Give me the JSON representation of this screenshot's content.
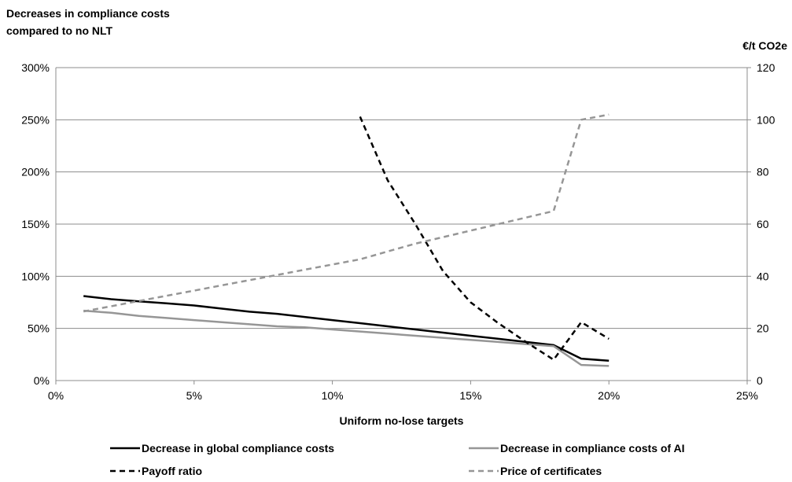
{
  "chart_data": {
    "type": "line",
    "ylabel_left_line1": "Decreases in compliance costs",
    "ylabel_left_line2": "compared to no NLT",
    "ylabel_right": "€/t CO2e",
    "xlabel": "Uniform no-lose targets",
    "xlim": [
      0,
      25
    ],
    "ylim_left": [
      0,
      300
    ],
    "ylim_right": [
      0,
      120
    ],
    "x_ticks": [
      "0%",
      "5%",
      "10%",
      "15%",
      "20%",
      "25%"
    ],
    "y_left_ticks": [
      "0%",
      "50%",
      "100%",
      "150%",
      "200%",
      "250%",
      "300%"
    ],
    "y_right_ticks": [
      "0",
      "20",
      "40",
      "60",
      "80",
      "100",
      "120"
    ],
    "grid": "horizontal",
    "legend_position": "bottom",
    "series": [
      {
        "name": "Decrease in global compliance costs",
        "axis": "left",
        "color": "#000000",
        "dash": "solid",
        "x": [
          1,
          2,
          3,
          4,
          5,
          6,
          7,
          8,
          9,
          10,
          11,
          12,
          13,
          14,
          15,
          16,
          17,
          18,
          19,
          20
        ],
        "y": [
          81,
          78,
          76,
          74,
          72,
          69,
          66,
          64,
          61,
          58,
          55,
          52,
          49,
          46,
          43,
          40,
          37,
          34,
          21,
          19
        ]
      },
      {
        "name": "Decrease in compliance costs of AI",
        "axis": "left",
        "color": "#969696",
        "dash": "solid",
        "x": [
          1,
          2,
          3,
          4,
          5,
          6,
          7,
          8,
          9,
          10,
          11,
          12,
          13,
          14,
          15,
          16,
          17,
          18,
          19,
          20
        ],
        "y": [
          67,
          65,
          62,
          60,
          58,
          56,
          54,
          52,
          51,
          49,
          47,
          45,
          43,
          41,
          39,
          37,
          35,
          33,
          15,
          14
        ]
      },
      {
        "name": "Payoff ratio",
        "axis": "left",
        "color": "#000000",
        "dash": "dashed",
        "x": [
          11,
          12,
          13,
          14,
          15,
          16,
          17,
          18,
          19,
          20
        ],
        "y": [
          253,
          192,
          150,
          105,
          75,
          55,
          37,
          20,
          56,
          40
        ]
      },
      {
        "name": "Price of certificates",
        "axis": "right",
        "color": "#969696",
        "dash": "dashed",
        "x": [
          1,
          2,
          3,
          4,
          5,
          6,
          7,
          8,
          9,
          10,
          11,
          12,
          13,
          14,
          15,
          16,
          17,
          18,
          19,
          20
        ],
        "y": [
          26.5,
          28.5,
          30.5,
          32.5,
          34.5,
          36.5,
          38.5,
          40.5,
          42.5,
          44.5,
          46.5,
          49.5,
          52.5,
          55,
          57.5,
          60,
          62.5,
          65,
          100,
          102
        ]
      }
    ]
  }
}
